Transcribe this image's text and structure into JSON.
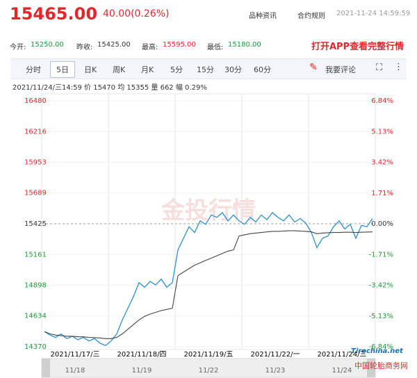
{
  "header": {
    "price": "15465.00",
    "change": "40.00(0.26%)",
    "links": [
      "品种资讯",
      "合约规则"
    ],
    "time": "2021-11-24 14:59:59"
  },
  "stats": [
    {
      "label": "今开:",
      "value": "15250.00"
    },
    {
      "label": "昨收:",
      "value": "15425.00"
    },
    {
      "label": "最高:",
      "value": "15595.00"
    },
    {
      "label": "最低:",
      "value": "15180.00"
    }
  ],
  "app_link": "打开APP查看完整行情",
  "tabs": [
    "分时",
    "5日",
    "日K",
    "周K",
    "月K",
    "5分",
    "15分",
    "30分",
    "60分"
  ],
  "comment": "我要评论",
  "info": {
    "time": "2021/11/24/三14:59",
    "price_label": "价",
    "price": "15470",
    "avg_label": "均",
    "avg": "15355",
    "vol_label": "量",
    "vol": "662",
    "amp_label": "幅",
    "amp": "0.29%"
  },
  "watermark": {
    "site": "Tirechina.net",
    "name": "中国轮胎商务网"
  },
  "chart_data": {
    "type": "line",
    "ylim": [
      14370,
      16480
    ],
    "yticks": [
      14370,
      14634,
      14898,
      15161,
      15425,
      15689,
      15953,
      16216,
      16480
    ],
    "y2lim": [
      -6.84,
      6.84
    ],
    "y2ticks": [
      {
        "value": -6.84,
        "label": "-6.84%"
      },
      {
        "value": -5.13,
        "label": "-5.13%"
      },
      {
        "value": -3.42,
        "label": "-3.42%"
      },
      {
        "value": -1.71,
        "label": "-1.71%"
      },
      {
        "value": 0,
        "label": "0.00%"
      },
      {
        "value": 1.71,
        "label": "1.71%"
      },
      {
        "value": 3.42,
        "label": "3.42%"
      },
      {
        "value": 5.13,
        "label": "5.13%"
      },
      {
        "value": 6.84,
        "label": "6.84%"
      }
    ],
    "day_labels": [
      "2021/11/17/三",
      "2021/11/18/四",
      "2021/11/19/五",
      "2021/11/22/一",
      "2021/11/24/三"
    ],
    "nav_labels": [
      "11/18",
      "11/19",
      "11/22",
      "11/23",
      "11/24"
    ],
    "grid": true,
    "series": [
      {
        "color": "#2b8fcb",
        "values": [
          14500,
          14470,
          14450,
          14480,
          14440,
          14460,
          14430,
          14450,
          14420,
          14440,
          14400,
          14380,
          14420,
          14480,
          14600,
          14700,
          14800,
          14920,
          14880,
          14930,
          14900,
          14950,
          14880,
          14920,
          15200,
          15300,
          15400,
          15350,
          15450,
          15420,
          15500,
          15480,
          15520,
          15450,
          15500,
          15450,
          15420,
          15480,
          15440,
          15500,
          15460,
          15520,
          15480,
          15450,
          15500,
          15440,
          15470,
          15430,
          15350,
          15220,
          15300,
          15320,
          15400,
          15450,
          15380,
          15420,
          15300,
          15410,
          15400,
          15470
        ]
      },
      {
        "color": "#444444",
        "values": [
          14500,
          14480,
          14470,
          14465,
          14460,
          14460,
          14455,
          14455,
          14450,
          14448,
          14445,
          14440,
          14440,
          14450,
          14480,
          14520,
          14560,
          14600,
          14630,
          14650,
          14665,
          14680,
          14690,
          14700,
          14980,
          15010,
          15040,
          15070,
          15090,
          15110,
          15130,
          15150,
          15170,
          15190,
          15200,
          15320,
          15330,
          15340,
          15345,
          15350,
          15355,
          15360,
          15360,
          15362,
          15365,
          15365,
          15362,
          15360,
          15355,
          15340,
          15345,
          15348,
          15350,
          15350,
          15352,
          15352,
          15350,
          15352,
          15354,
          15355
        ]
      }
    ]
  }
}
